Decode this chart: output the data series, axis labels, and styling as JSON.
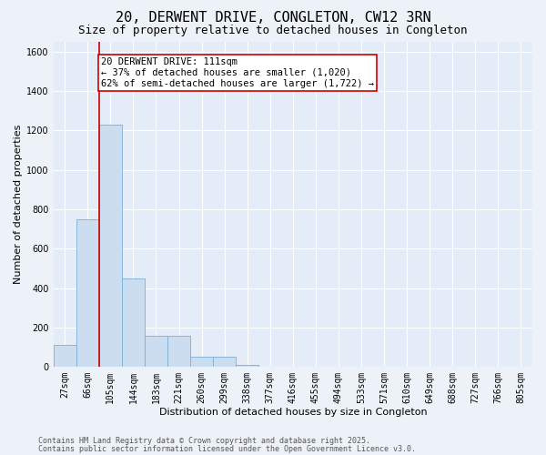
{
  "title": "20, DERWENT DRIVE, CONGLETON, CW12 3RN",
  "subtitle": "Size of property relative to detached houses in Congleton",
  "xlabel": "Distribution of detached houses by size in Congleton",
  "ylabel": "Number of detached properties",
  "categories": [
    "27sqm",
    "66sqm",
    "105sqm",
    "144sqm",
    "183sqm",
    "221sqm",
    "260sqm",
    "299sqm",
    "338sqm",
    "377sqm",
    "416sqm",
    "455sqm",
    "494sqm",
    "533sqm",
    "571sqm",
    "610sqm",
    "649sqm",
    "688sqm",
    "727sqm",
    "766sqm",
    "805sqm"
  ],
  "values": [
    110,
    750,
    1230,
    450,
    160,
    160,
    50,
    50,
    10,
    0,
    0,
    0,
    0,
    0,
    0,
    0,
    0,
    0,
    0,
    0,
    0
  ],
  "bar_color": "#ccddf0",
  "bar_edge_color": "#7ab0d8",
  "vline_x_index": 2,
  "vline_color": "#cc0000",
  "ylim": [
    0,
    1650
  ],
  "yticks": [
    0,
    200,
    400,
    600,
    800,
    1000,
    1200,
    1400,
    1600
  ],
  "annotation_text": "20 DERWENT DRIVE: 111sqm\n← 37% of detached houses are smaller (1,020)\n62% of semi-detached houses are larger (1,722) →",
  "annotation_box_facecolor": "#ffffff",
  "annotation_box_edgecolor": "#cc0000",
  "footer_line1": "Contains HM Land Registry data © Crown copyright and database right 2025.",
  "footer_line2": "Contains public sector information licensed under the Open Government Licence v3.0.",
  "background_color": "#edf2f9",
  "plot_bg_color": "#e4ecf7",
  "grid_color": "#ffffff",
  "title_fontsize": 11,
  "subtitle_fontsize": 9,
  "axis_label_fontsize": 8,
  "tick_fontsize": 7,
  "annotation_fontsize": 7.5,
  "footer_fontsize": 6
}
